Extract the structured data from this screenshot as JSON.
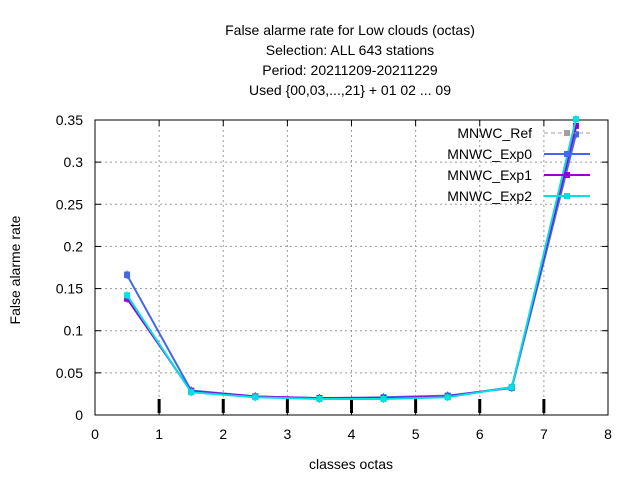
{
  "chart_data": {
    "type": "line",
    "title_lines": [
      "False alarme rate  for Low clouds (octas)",
      "Selection: ALL    643 stations",
      "Period: 20211209-20211229",
      "Used {00,03,...,21} + 01 02 ... 09"
    ],
    "xlabel": "classes octas",
    "ylabel": "False alarme rate",
    "xlim": [
      0,
      8
    ],
    "ylim": [
      0,
      0.35
    ],
    "xticks": [
      0,
      1,
      2,
      3,
      4,
      5,
      6,
      7,
      8
    ],
    "yticks": [
      0,
      0.05,
      0.1,
      0.15,
      0.2,
      0.25,
      0.3,
      0.35
    ],
    "xtick_labels": [
      "0",
      "1",
      "2",
      "3",
      "4",
      "5",
      "6",
      "7",
      "8"
    ],
    "ytick_labels": [
      "0",
      "0.05",
      "0.1",
      "0.15",
      "0.2",
      "0.25",
      "0.3",
      "0.35"
    ],
    "grid": true,
    "legend_position": "top-right",
    "x": [
      0.5,
      1.5,
      2.5,
      3.5,
      4.5,
      5.5,
      6.5,
      7.5
    ],
    "series": [
      {
        "name": "MNWC_Ref",
        "color": "#a0a0a0",
        "dashed": true,
        "values": [
          0.167,
          0.029,
          0.022,
          0.02,
          0.021,
          0.023,
          0.033,
          0.333
        ]
      },
      {
        "name": "MNWC_Exp0",
        "color": "#4169e1",
        "dashed": false,
        "values": [
          0.166,
          0.029,
          0.022,
          0.02,
          0.021,
          0.023,
          0.032,
          0.333
        ]
      },
      {
        "name": "MNWC_Exp1",
        "color": "#9400d3",
        "dashed": false,
        "values": [
          0.138,
          0.028,
          0.022,
          0.02,
          0.02,
          0.022,
          0.033,
          0.343
        ]
      },
      {
        "name": "MNWC_Exp2",
        "color": "#00e0e0",
        "dashed": false,
        "values": [
          0.142,
          0.027,
          0.021,
          0.019,
          0.019,
          0.021,
          0.033,
          0.351
        ]
      }
    ],
    "bottom_markers_x": [
      1,
      2,
      3,
      4,
      5,
      6,
      7
    ]
  }
}
